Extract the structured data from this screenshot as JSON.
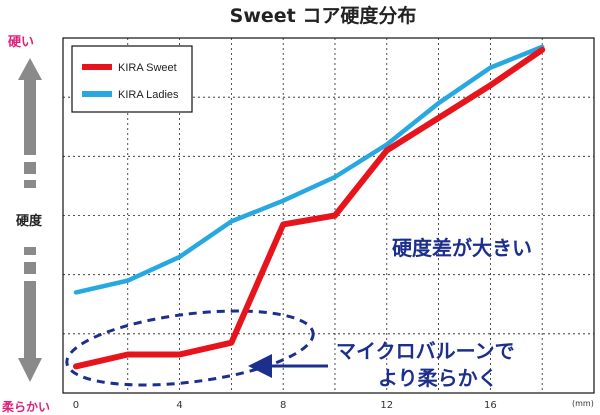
{
  "chart_data": {
    "type": "line",
    "title": "Sweet コア硬度分布",
    "ylabel_top": "硬い",
    "ylabel_mid": "硬度",
    "ylabel_bottom": "柔らかい",
    "x_unit": "(mm)",
    "x_ticks": [
      "0",
      "4",
      "8",
      "12",
      "16"
    ],
    "xlim": [
      -0.5,
      20
    ],
    "ylim": [
      0,
      6
    ],
    "grid": true,
    "legend_position": "top-left",
    "series": [
      {
        "name": "KIRA Sweet",
        "color": "#e8141c",
        "x": [
          0,
          2,
          4,
          6,
          8,
          10,
          12,
          14,
          16,
          18
        ],
        "y": [
          0.45,
          0.65,
          0.65,
          0.85,
          2.85,
          3.0,
          4.1,
          4.65,
          5.2,
          5.8
        ]
      },
      {
        "name": "KIRA Ladies",
        "color": "#27a8e0",
        "x": [
          0,
          2,
          4,
          6,
          8,
          10,
          12,
          14,
          16,
          18
        ],
        "y": [
          1.7,
          1.9,
          2.3,
          2.9,
          3.25,
          3.65,
          4.2,
          4.9,
          5.5,
          5.85
        ]
      }
    ],
    "annotations": [
      {
        "text": "硬度差が大きい"
      },
      {
        "text_line1": "マイクロバルーンで",
        "text_line2": "より柔らかく"
      }
    ]
  }
}
